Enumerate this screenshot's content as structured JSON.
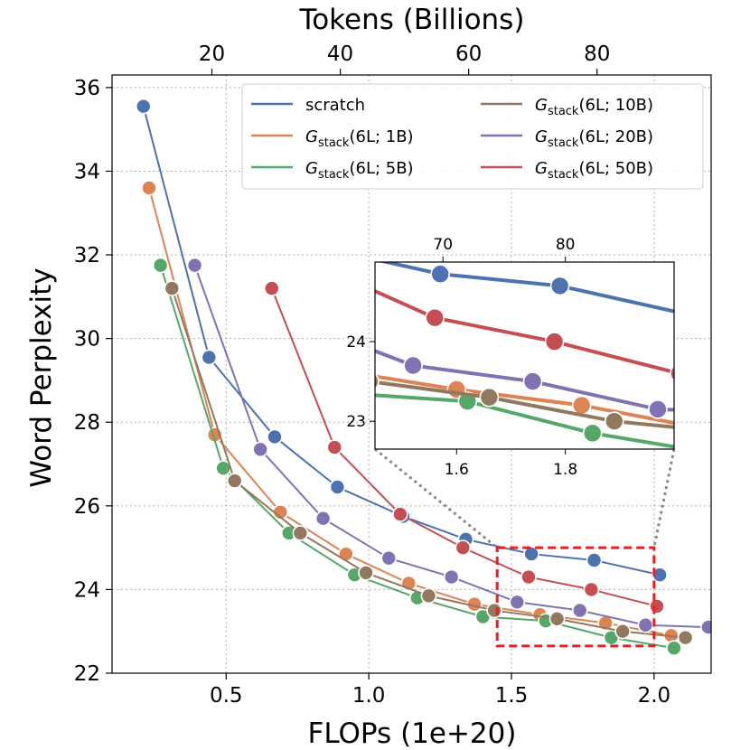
{
  "chart_data": {
    "type": "line",
    "xlabel": "FLOPs (1e+20)",
    "ylabel": "Word Perplexity",
    "top_xlabel": "Tokens (Billions)",
    "xlim": [
      0.1,
      2.2
    ],
    "ylim": [
      22,
      36.3
    ],
    "grid": true,
    "legend_position": "top-right",
    "x_ticks": [
      0.5,
      1.0,
      1.5,
      2.0
    ],
    "x_tick_labels": [
      "0.5",
      "1.0",
      "1.5",
      "2.0"
    ],
    "y_ticks": [
      22,
      24,
      26,
      28,
      30,
      32,
      34,
      36
    ],
    "y_tick_labels": [
      "22",
      "24",
      "26",
      "28",
      "30",
      "32",
      "34",
      "36"
    ],
    "top_ticks": [
      20,
      40,
      60,
      80
    ],
    "top_tick_labels": [
      "20",
      "40",
      "60",
      "80"
    ],
    "flops_per_billion_tokens": 0.0225,
    "series": [
      {
        "name": "scratch",
        "legend_main": "scratch",
        "legend_arg": "",
        "color": "#4c72b0",
        "x": [
          0.21,
          0.44,
          0.67,
          0.89,
          1.12,
          1.34,
          1.57,
          1.79,
          2.02
        ],
        "y": [
          35.55,
          29.55,
          27.65,
          26.45,
          25.75,
          25.2,
          24.85,
          24.7,
          24.35
        ]
      },
      {
        "name": "G_stack(6L; 1B)",
        "legend_main": "G",
        "legend_arg": "(6L; 1B)",
        "color": "#dd8452",
        "x": [
          0.23,
          0.46,
          0.69,
          0.92,
          1.14,
          1.37,
          1.6,
          1.83,
          2.06
        ],
        "y": [
          33.6,
          27.7,
          25.85,
          24.85,
          24.15,
          23.65,
          23.4,
          23.2,
          22.9
        ]
      },
      {
        "name": "G_stack(6L; 5B)",
        "legend_main": "G",
        "legend_arg": "(6L; 5B)",
        "color": "#55a868",
        "x": [
          0.27,
          0.49,
          0.72,
          0.95,
          1.17,
          1.4,
          1.62,
          1.85,
          2.07
        ],
        "y": [
          31.75,
          26.9,
          25.35,
          24.35,
          23.8,
          23.35,
          23.25,
          22.85,
          22.6
        ]
      },
      {
        "name": "G_stack(6L; 10B)",
        "legend_main": "G",
        "legend_arg": "(6L; 10B)",
        "color": "#937860",
        "x": [
          0.31,
          0.53,
          0.76,
          0.99,
          1.21,
          1.44,
          1.66,
          1.89,
          2.11
        ],
        "y": [
          31.2,
          26.6,
          25.35,
          24.4,
          23.85,
          23.5,
          23.3,
          23.0,
          22.85
        ]
      },
      {
        "name": "G_stack(6L; 20B)",
        "legend_main": "G",
        "legend_arg": "(6L; 20B)",
        "color": "#8172b3",
        "x": [
          0.39,
          0.62,
          0.84,
          1.07,
          1.29,
          1.52,
          1.74,
          1.97,
          2.19
        ],
        "y": [
          31.75,
          27.35,
          25.7,
          24.75,
          24.3,
          23.7,
          23.5,
          23.15,
          23.1
        ]
      },
      {
        "name": "G_stack(6L; 50B)",
        "legend_main": "G",
        "legend_arg": "(6L; 50B)",
        "color": "#c44e52",
        "x": [
          0.66,
          0.88,
          1.11,
          1.33,
          1.56,
          1.78,
          2.01
        ],
        "y": [
          31.2,
          27.4,
          25.8,
          25.0,
          24.3,
          24.0,
          23.6
        ]
      }
    ],
    "inset": {
      "xlim": [
        1.45,
        2.0
      ],
      "ylim": [
        22.65,
        25.0
      ],
      "x_ticks": [
        1.6,
        1.8
      ],
      "x_tick_labels": [
        "1.6",
        "1.8"
      ],
      "y_ticks": [
        23,
        24
      ],
      "y_tick_labels": [
        "23",
        "24"
      ],
      "top_ticks": [
        70,
        80
      ],
      "top_tick_labels": [
        "70",
        "80"
      ]
    }
  }
}
